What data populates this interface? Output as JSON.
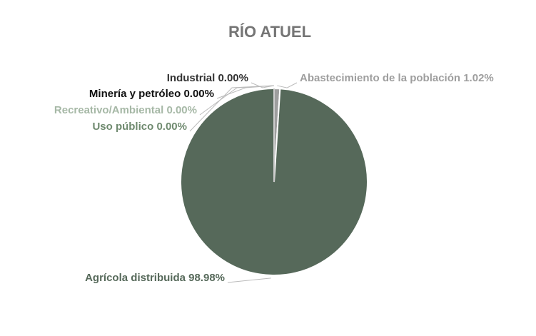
{
  "chart_data": {
    "type": "pie",
    "title": "RÍO ATUEL",
    "categories": [
      "Abastecimiento de la población",
      "Agrícola distribuida",
      "Uso público",
      "Recreativo/Ambiental",
      "Minería y petróleo",
      "Industrial"
    ],
    "values": [
      1.02,
      98.98,
      0,
      0,
      0,
      0
    ],
    "value_labels": [
      "1.02%",
      "98.98%",
      "0.00%",
      "0.00%",
      "0.00%",
      "0.00%"
    ],
    "colors": [
      "#9e9e9e",
      "#56695a",
      "#6f8a6f",
      "#a6b8a6",
      "#111111",
      "#333333"
    ]
  }
}
